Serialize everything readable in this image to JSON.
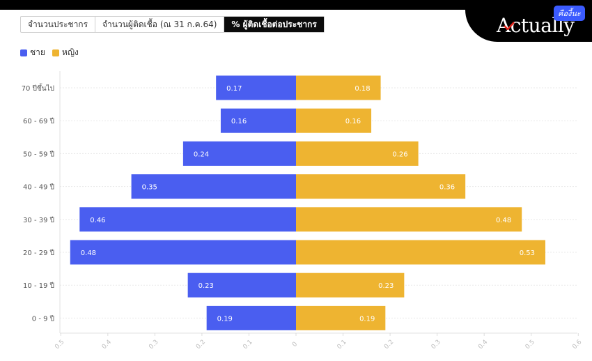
{
  "tabs": [
    {
      "label": "จำนวนประชากร",
      "active": false
    },
    {
      "label": "จำนวนผู้ติดเชื้อ (ณ 31 ก.ค.64)",
      "active": false
    },
    {
      "label": "% ผู้ติดเชื้อต่อประชากร",
      "active": true
    }
  ],
  "brand": {
    "name": "Actually",
    "badge": "คืองี้นะ"
  },
  "chart_data": {
    "type": "bar",
    "orientation": "horizontal-diverging",
    "categories": [
      "70 ปีขึ้นไป",
      "60 - 69 ปี",
      "50 - 59 ปี",
      "40 - 49 ปี",
      "30 - 39 ปี",
      "20 - 29 ปี",
      "10 - 19 ปี",
      "0 - 9 ปี"
    ],
    "series": [
      {
        "name": "ชาย",
        "color": "#4a5ef0",
        "values": [
          0.17,
          0.16,
          0.24,
          0.35,
          0.46,
          0.48,
          0.23,
          0.19
        ]
      },
      {
        "name": "หญิง",
        "color": "#eeb431",
        "values": [
          0.18,
          0.16,
          0.26,
          0.36,
          0.48,
          0.53,
          0.23,
          0.19
        ]
      }
    ],
    "xlim": [
      -0.5,
      0.6
    ],
    "x_ticks": [
      "0.5",
      "0.4",
      "0.3",
      "0.2",
      "0.1",
      "0",
      "0.1",
      "0.2",
      "0.3",
      "0.4",
      "0.5",
      "0.6"
    ],
    "grid": true,
    "legend": "top-left"
  }
}
